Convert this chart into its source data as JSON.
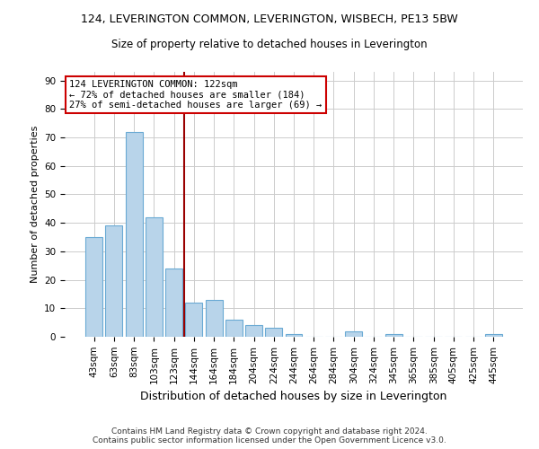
{
  "title1": "124, LEVERINGTON COMMON, LEVERINGTON, WISBECH, PE13 5BW",
  "title2": "Size of property relative to detached houses in Leverington",
  "xlabel": "Distribution of detached houses by size in Leverington",
  "ylabel": "Number of detached properties",
  "categories": [
    "43sqm",
    "63sqm",
    "83sqm",
    "103sqm",
    "123sqm",
    "144sqm",
    "164sqm",
    "184sqm",
    "204sqm",
    "224sqm",
    "244sqm",
    "264sqm",
    "284sqm",
    "304sqm",
    "324sqm",
    "345sqm",
    "365sqm",
    "385sqm",
    "405sqm",
    "425sqm",
    "445sqm"
  ],
  "values": [
    35,
    39,
    72,
    42,
    24,
    12,
    13,
    6,
    4,
    3,
    1,
    0,
    0,
    2,
    0,
    1,
    0,
    0,
    0,
    0,
    1
  ],
  "bar_color": "#b8d4ea",
  "bar_edge_color": "#6aaad4",
  "vline_x": 4.5,
  "vline_color": "#990000",
  "annotation_line1": "124 LEVERINGTON COMMON: 122sqm",
  "annotation_line2": "← 72% of detached houses are smaller (184)",
  "annotation_line3": "27% of semi-detached houses are larger (69) →",
  "annotation_box_color": "#ffffff",
  "annotation_box_edge": "#cc0000",
  "footer": "Contains HM Land Registry data © Crown copyright and database right 2024.\nContains public sector information licensed under the Open Government Licence v3.0.",
  "ylim": [
    0,
    93
  ],
  "yticks": [
    0,
    10,
    20,
    30,
    40,
    50,
    60,
    70,
    80,
    90
  ],
  "bg_color": "#ffffff",
  "grid_color": "#cccccc",
  "title1_fontsize": 9.0,
  "title2_fontsize": 8.5,
  "ylabel_fontsize": 8.0,
  "xlabel_fontsize": 9.0,
  "tick_fontsize": 7.5,
  "annot_fontsize": 7.5,
  "footer_fontsize": 6.5
}
